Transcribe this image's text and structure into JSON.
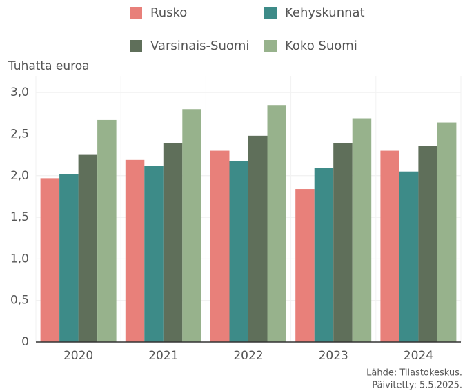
{
  "chart_data": {
    "type": "bar",
    "y_label": "Tuhatta euroa",
    "source": "Lähde: Tilastokeskus.",
    "updated": "Päivitetty: 5.5.2025.",
    "categories": [
      "2020",
      "2021",
      "2022",
      "2023",
      "2024"
    ],
    "series": [
      {
        "name": "Rusko",
        "color": "#e8807a",
        "values": [
          1.97,
          2.19,
          2.3,
          1.84,
          2.3
        ]
      },
      {
        "name": "Kehyskunnat",
        "color": "#3d8b88",
        "values": [
          2.02,
          2.12,
          2.18,
          2.09,
          2.05
        ]
      },
      {
        "name": "Varsinais-Suomi",
        "color": "#5f6f5a",
        "values": [
          2.25,
          2.39,
          2.48,
          2.39,
          2.36
        ]
      },
      {
        "name": "Koko Suomi",
        "color": "#97b28c",
        "values": [
          2.67,
          2.8,
          2.85,
          2.69,
          2.64
        ]
      }
    ],
    "ylim": [
      0,
      3.2
    ],
    "yticks": [
      0,
      {
        "value": 0.5,
        "label": "0,5"
      },
      {
        "value": 1.0,
        "label": "1,0"
      },
      {
        "value": 1.5,
        "label": "1,5"
      },
      {
        "value": 2.0,
        "label": "2,0"
      },
      {
        "value": 2.5,
        "label": "2,5"
      },
      {
        "value": 3.0,
        "label": "3,0"
      }
    ],
    "grid": true
  }
}
